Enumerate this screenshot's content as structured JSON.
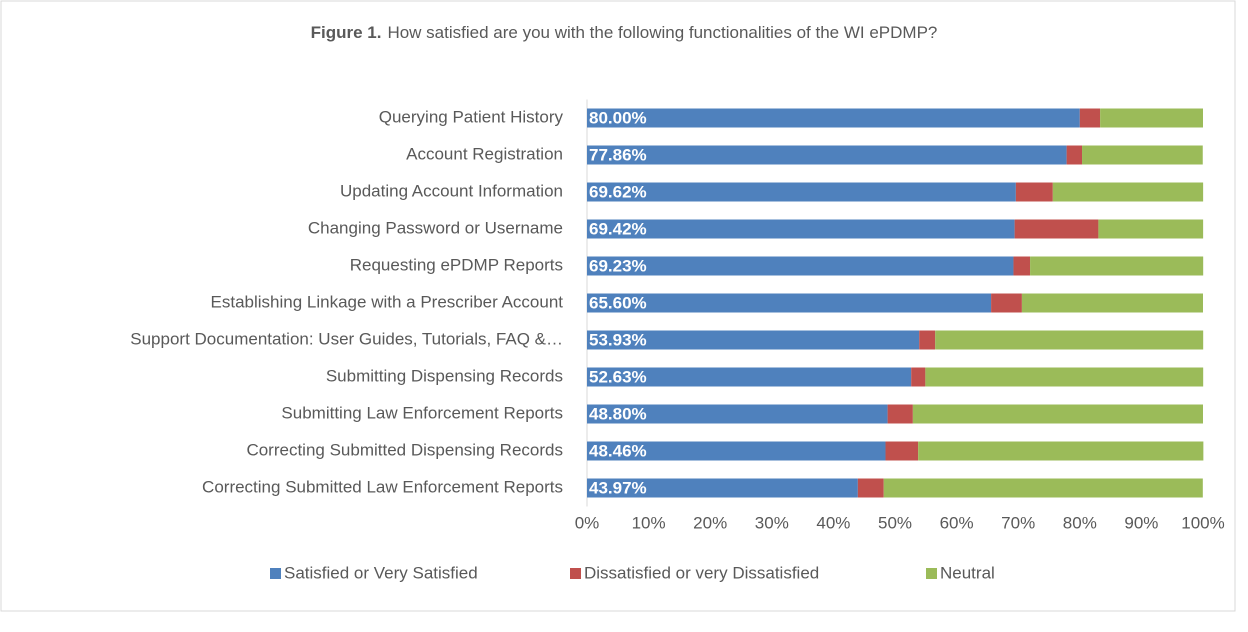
{
  "chart_data": {
    "type": "stacked_barh",
    "figure_label": "Figure 1.",
    "title": "How satisfied are you with the following functionalities of the WI ePDMP?",
    "categories": [
      "Querying Patient History",
      "Account Registration",
      "Updating Account Information",
      "Changing Password or Username",
      "Requesting ePDMP Reports",
      "Establishing Linkage with a Prescriber Account",
      "Support Documentation: User Guides, Tutorials, FAQ &…",
      "Submitting Dispensing Records",
      "Submitting Law Enforcement Reports",
      "Correcting Submitted Dispensing Records",
      "Correcting Submitted Law Enforcement Reports"
    ],
    "series": [
      {
        "name": "Satisfied or Very Satisfied",
        "color": "#4f81bd",
        "values": [
          80.0,
          77.86,
          69.62,
          69.42,
          69.23,
          65.6,
          53.93,
          52.63,
          48.8,
          48.46,
          43.97
        ],
        "value_labels": [
          "80.00%",
          "77.86%",
          "69.62%",
          "69.42%",
          "69.23%",
          "65.60%",
          "53.93%",
          "52.63%",
          "48.80%",
          "48.46%",
          "43.97%"
        ]
      },
      {
        "name": "Dissatisfied or very Dissatisfied",
        "color": "#c0504d",
        "values": [
          3.3,
          2.5,
          6.0,
          13.6,
          2.7,
          5.0,
          2.6,
          2.3,
          4.1,
          5.3,
          4.2
        ]
      },
      {
        "name": "Neutral",
        "color": "#9bbb59",
        "values": [
          16.7,
          19.6,
          24.4,
          17.0,
          28.1,
          29.4,
          43.5,
          45.1,
          47.1,
          46.3,
          51.8
        ]
      }
    ],
    "xlim": [
      0,
      100
    ],
    "xticks": [
      {
        "value": 0,
        "label": "0%"
      },
      {
        "value": 10,
        "label": "10%"
      },
      {
        "value": 20,
        "label": "20%"
      },
      {
        "value": 30,
        "label": "30%"
      },
      {
        "value": 40,
        "label": "40%"
      },
      {
        "value": 50,
        "label": "50%"
      },
      {
        "value": 60,
        "label": "60%"
      },
      {
        "value": 70,
        "label": "70%"
      },
      {
        "value": 80,
        "label": "80%"
      },
      {
        "value": 90,
        "label": "90%"
      },
      {
        "value": 100,
        "label": "100%"
      }
    ],
    "grid": false,
    "legend": "bottom"
  }
}
